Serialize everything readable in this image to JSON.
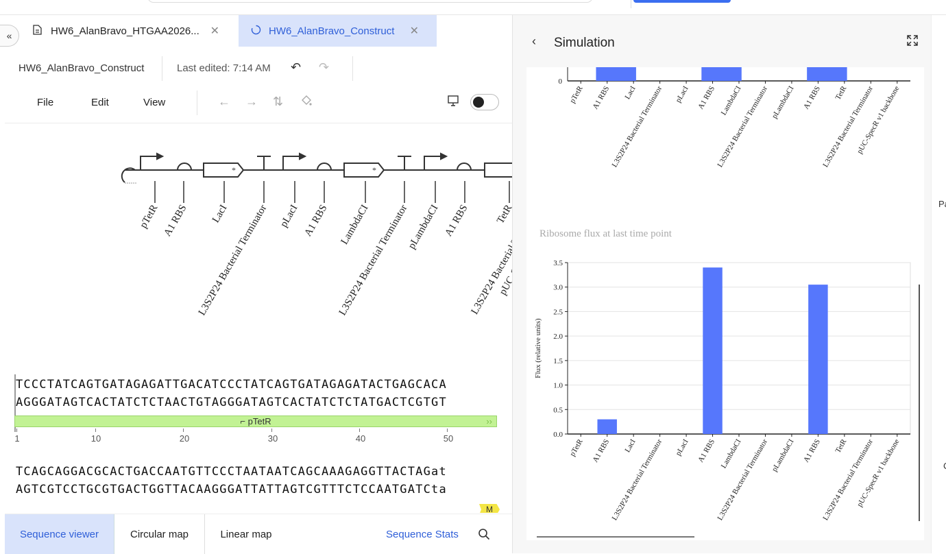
{
  "tabs": [
    {
      "label": "HW6_AlanBravo_HTGAA2026...",
      "icon": "document-icon",
      "active": false
    },
    {
      "label": "HW6_AlanBravo_Construct",
      "icon": "circular-plasmid-icon",
      "active": true
    }
  ],
  "doc": {
    "title": "HW6_AlanBravo_Construct",
    "last_edited": "Last edited: 7:14 AM"
  },
  "menu": {
    "file": "File",
    "edit": "Edit",
    "view": "View"
  },
  "map": {
    "parts": [
      "pTetR",
      "A1 RBS",
      "LacI",
      "L3S2P24 Bacterial Terminator",
      "pLacI",
      "A1 RBS",
      "LambdaCI",
      "L3S2P24 Bacterial Terminator",
      "pLambdaCI",
      "A1 RBS",
      "TetR",
      "L3S2P24 Bacterial T",
      "pUC-S"
    ]
  },
  "sequence": {
    "row1_top": "TCCCTATCAGTGATAGAGATTGACATCCCTATCAGTGATAGAGATACTGAGCACA",
    "row1_bottom": "AGGGATAGTCACTATCTCTAACTGTAGGGATAGTCACTATCTCTATGACTCGTGT",
    "feature": "pTetR",
    "ruler": [
      "1",
      "10",
      "20",
      "30",
      "40",
      "50"
    ],
    "row2_top": "TCAGCAGGACGCACTGACCAATGTTCCCTAATAATCAGCAAAGAGGTTACTAGat",
    "row2_bottom": "AGTCGTCCTGCGTGACTGGTTACAAGGGATTATTAGTCGTTTCTCCAATGATCta",
    "badge": "M"
  },
  "bottom_tabs": {
    "sequence_viewer": "Sequence viewer",
    "circular_map": "Circular map",
    "linear_map": "Linear map",
    "sequence_stats": "Sequence Stats"
  },
  "sim": {
    "title": "Simulation",
    "side_text_1": "Pa",
    "side_text_2": "C"
  },
  "chart_data": [
    {
      "type": "bar",
      "title": "",
      "categories": [
        "pTetR",
        "A1 RBS",
        "LacI",
        "L3S2P24 Bacterial Terminator",
        "pLacI",
        "A1 RBS",
        "LambdaCI",
        "L3S2P24 Bacterial Terminator",
        "pLambdaCI",
        "A1 RBS",
        "TetR",
        "L3S2P24 Bacterial Terminator",
        "pUC-SpecR v1 backbone"
      ],
      "y_tick_labels": [
        "0"
      ],
      "partially_visible": true,
      "bar_color": "#5677fc"
    },
    {
      "type": "bar",
      "title": "Ribosome flux at last time point",
      "ylabel": "Flux (relative units)",
      "xlabel": "",
      "ylim": [
        0,
        3.5
      ],
      "yticks": [
        "0.0",
        "0.5",
        "1.0",
        "1.5",
        "2.0",
        "2.5",
        "3.0",
        "3.5"
      ],
      "categories": [
        "pTetR",
        "A1 RBS",
        "LacI",
        "L3S2P24 Bacterial Terminator",
        "pLacI",
        "A1 RBS",
        "LambdaCI",
        "L3S2P24 Bacterial Terminator",
        "pLambdaCI",
        "A1 RBS",
        "TetR",
        "L3S2P24 Bacterial Terminator",
        "pUC-SpecR v1 backbone"
      ],
      "values": [
        0,
        0.3,
        0,
        0,
        0,
        3.4,
        0,
        0,
        0,
        3.05,
        0,
        0,
        0
      ],
      "bar_color": "#5677fc",
      "grid": true
    }
  ]
}
